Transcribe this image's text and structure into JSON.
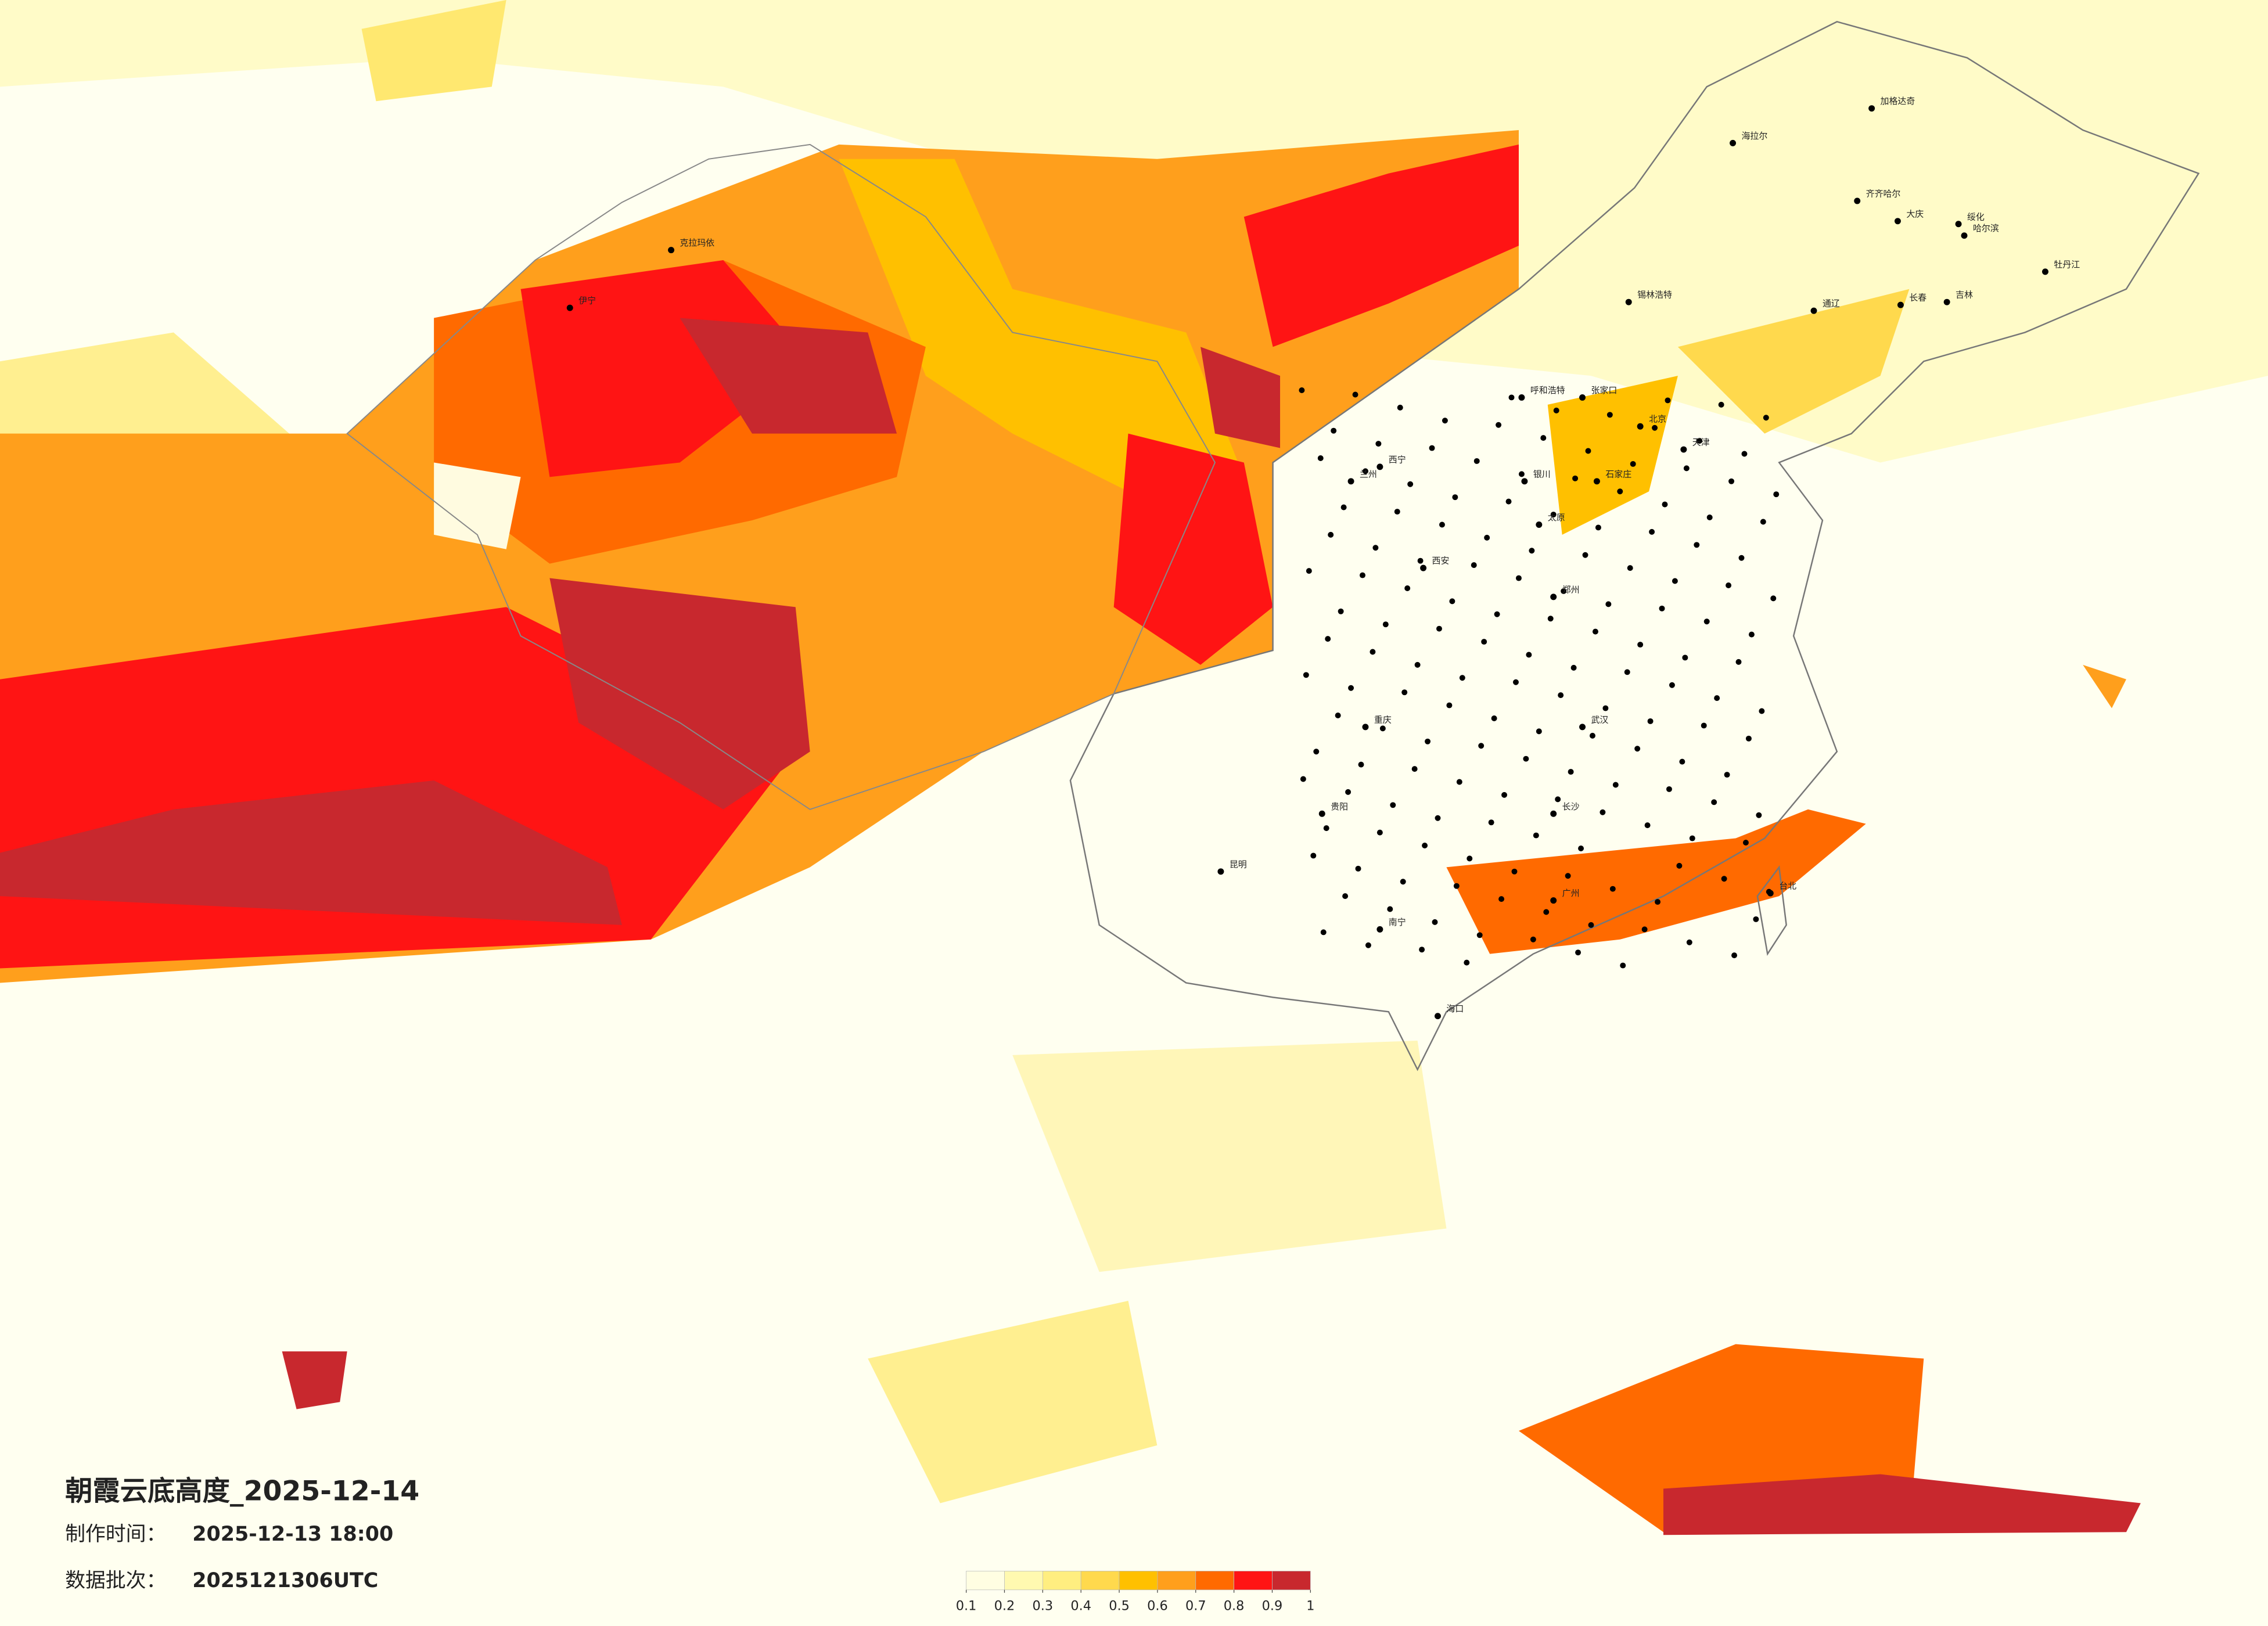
{
  "header": {
    "title": "朝霞云底高度_2025-12-14",
    "production_time_label": "制作时间：",
    "production_time": "2025-12-13 18:00",
    "batch_label": "数据批次：",
    "batch": "2025121306UTC"
  },
  "legend": {
    "ticks": [
      0.1,
      0.2,
      0.3,
      0.4,
      0.5,
      0.6,
      0.7,
      0.8,
      0.9,
      1
    ],
    "colors": [
      "#fffee2",
      "#fff9b0",
      "#ffee80",
      "#ffd94d",
      "#ffc000",
      "#ff9f1c",
      "#ff6a00",
      "#ff1414",
      "#c8282e"
    ]
  },
  "cities": [
    "海拉尔",
    "加格达奇",
    "齐齐哈尔",
    "大庆",
    "绥化",
    "哈尔滨",
    "牡丹江",
    "长春",
    "吉林",
    "通辽",
    "锡林浩特",
    "呼和浩特",
    "张家口",
    "北京",
    "天津",
    "石家庄",
    "太原",
    "银川",
    "西宁",
    "兰州",
    "克拉玛依",
    "伊宁",
    "西安",
    "郑州",
    "武汉",
    "长沙",
    "南宁",
    "昆明",
    "贵阳",
    "重庆",
    "广州",
    "台北",
    "海口"
  ]
}
